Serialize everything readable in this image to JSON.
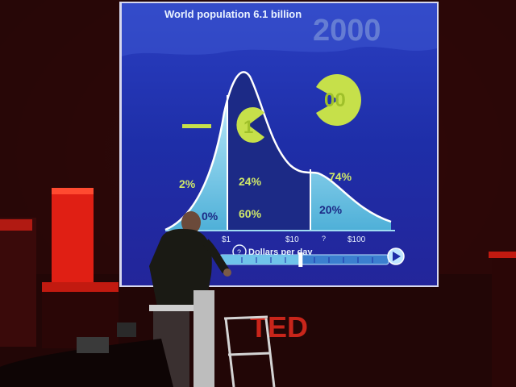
{
  "slide": {
    "title": "World population 6.1 billion",
    "year": "2000",
    "coin_low": "1",
    "coin_high": "00",
    "pct_left_top": "2%",
    "pct_left_bottom": "0%",
    "pct_mid_top": "24%",
    "pct_mid_bottom": "60%",
    "pct_right_top": "74%",
    "pct_right_bottom": "20%",
    "axis_ticks": [
      "$1",
      "$10",
      "$100"
    ],
    "axis_unknown": "?",
    "axis_label": "Dollars per day",
    "timeline_progress": 0.48
  },
  "stage": {
    "logo": "TED",
    "logo_color": "#e62b1e"
  },
  "colors": {
    "screen_bg": "#1d2fb0",
    "curve_fill": "#8fd7ec",
    "coin": "#c6e04a"
  }
}
